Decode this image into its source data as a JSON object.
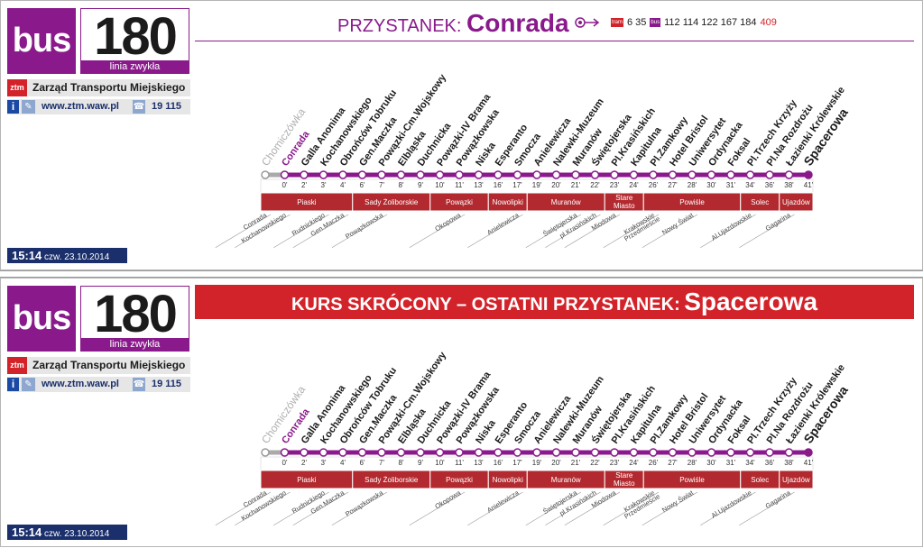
{
  "brand_color": "#8a1a8c",
  "accent_red": "#d3232a",
  "navy": "#1a2f6b",
  "header": {
    "mode": "bus",
    "line_number": "180",
    "line_type": "linia zwykła",
    "operator": "Zarząd Transportu Miejskiego",
    "operator_logo": "ztm",
    "website": "www.ztm.waw.pl",
    "phone": "19 115",
    "icons": [
      "info-icon",
      "web-icon",
      "phone-icon"
    ]
  },
  "timestamp": {
    "time": "15:14",
    "date": "czw. 23.10.2014"
  },
  "top_board": {
    "stop_label": "PRZYSTANEK:",
    "stop_name": "Conrada",
    "transfers": {
      "tram_tag": "tram",
      "tram_lines": "6 35",
      "bus_tag": "bus",
      "bus_lines": "112 114 122 167 184",
      "night_line": "409"
    }
  },
  "bottom_board": {
    "banner_label": "KURS SKRÓCONY – OSTATNI PRZYSTANEK:",
    "banner_stop": "Spacerowa"
  },
  "stops": [
    {
      "name": "Chomiczówka",
      "time": "",
      "style": "past"
    },
    {
      "name": "Conrada",
      "time": "0'",
      "style": "current"
    },
    {
      "name": "Galla Anonima",
      "time": "2'",
      "style": "normal"
    },
    {
      "name": "Kochanowskiego",
      "time": "3'",
      "style": "normal"
    },
    {
      "name": "Obrońców Tobruku",
      "time": "4'",
      "style": "normal"
    },
    {
      "name": "Gen.Maczka",
      "time": "6'",
      "style": "normal"
    },
    {
      "name": "Powązki-Cm.Wojskowy",
      "time": "7'",
      "style": "normal"
    },
    {
      "name": "Elbląska",
      "time": "8'",
      "style": "normal"
    },
    {
      "name": "Duchnicka",
      "time": "9'",
      "style": "normal"
    },
    {
      "name": "Powązki-IV Brama",
      "time": "10'",
      "style": "normal"
    },
    {
      "name": "Powązkowska",
      "time": "11'",
      "style": "normal"
    },
    {
      "name": "Niska",
      "time": "13'",
      "style": "normal"
    },
    {
      "name": "Esperanto",
      "time": "16'",
      "style": "normal"
    },
    {
      "name": "Smocza",
      "time": "17'",
      "style": "normal"
    },
    {
      "name": "Anielewicza",
      "time": "19'",
      "style": "normal"
    },
    {
      "name": "Nalewki-Muzeum",
      "time": "20'",
      "style": "normal"
    },
    {
      "name": "Muranów",
      "time": "21'",
      "style": "normal"
    },
    {
      "name": "Świętojerska",
      "time": "22'",
      "style": "normal"
    },
    {
      "name": "Pl.Krasińskich",
      "time": "23'",
      "style": "normal"
    },
    {
      "name": "Kapitulna",
      "time": "24'",
      "style": "normal"
    },
    {
      "name": "Pl.Zamkowy",
      "time": "26'",
      "style": "normal"
    },
    {
      "name": "Hotel Bristol",
      "time": "27'",
      "style": "normal"
    },
    {
      "name": "Uniwersytet",
      "time": "28'",
      "style": "normal"
    },
    {
      "name": "Ordynacka",
      "time": "30'",
      "style": "normal"
    },
    {
      "name": "Foksal",
      "time": "31'",
      "style": "normal"
    },
    {
      "name": "Pl.Trzech Krzyży",
      "time": "34'",
      "style": "normal"
    },
    {
      "name": "Pl.Na Rozdrożu",
      "time": "36'",
      "style": "normal"
    },
    {
      "name": "Łazienki Królewskie",
      "time": "38'",
      "style": "normal"
    },
    {
      "name": "Spacerowa",
      "time": "41'",
      "style": "terminus"
    }
  ],
  "districts": [
    {
      "name": "Piaski",
      "from": 0,
      "to": 4
    },
    {
      "name": "Sady Żoliborskie",
      "from": 5,
      "to": 8
    },
    {
      "name": "Powązki",
      "from": 9,
      "to": 11
    },
    {
      "name": "Nowolipki",
      "from": 12,
      "to": 13
    },
    {
      "name": "Muranów",
      "from": 14,
      "to": 17
    },
    {
      "name": "Stare Miasto",
      "from": 18,
      "to": 19
    },
    {
      "name": "Powiśle",
      "from": 20,
      "to": 24
    },
    {
      "name": "Solec",
      "from": 25,
      "to": 26
    },
    {
      "name": "Ujazdów",
      "from": 27,
      "to": 28
    }
  ],
  "streets": [
    {
      "name": "Conrada",
      "at": 0
    },
    {
      "name": "Kochanowskiego",
      "at": 1
    },
    {
      "name": "Rudnickiego",
      "at": 3
    },
    {
      "name": "Gen.Maczka",
      "at": 4
    },
    {
      "name": "Powązkowska",
      "at": 6
    },
    {
      "name": "Okopowa",
      "at": 10
    },
    {
      "name": "Anielewicza",
      "at": 13
    },
    {
      "name": "Świętojerska",
      "at": 16
    },
    {
      "name": "pl.Krasińskich",
      "at": 17
    },
    {
      "name": "Miodowa",
      "at": 18
    },
    {
      "name": "Krakowskie Przedmieście",
      "at": 20
    },
    {
      "name": "Nowy Świat",
      "at": 22
    },
    {
      "name": "Al.Ujazdowskie",
      "at": 25
    },
    {
      "name": "Gagarina",
      "at": 27
    }
  ]
}
